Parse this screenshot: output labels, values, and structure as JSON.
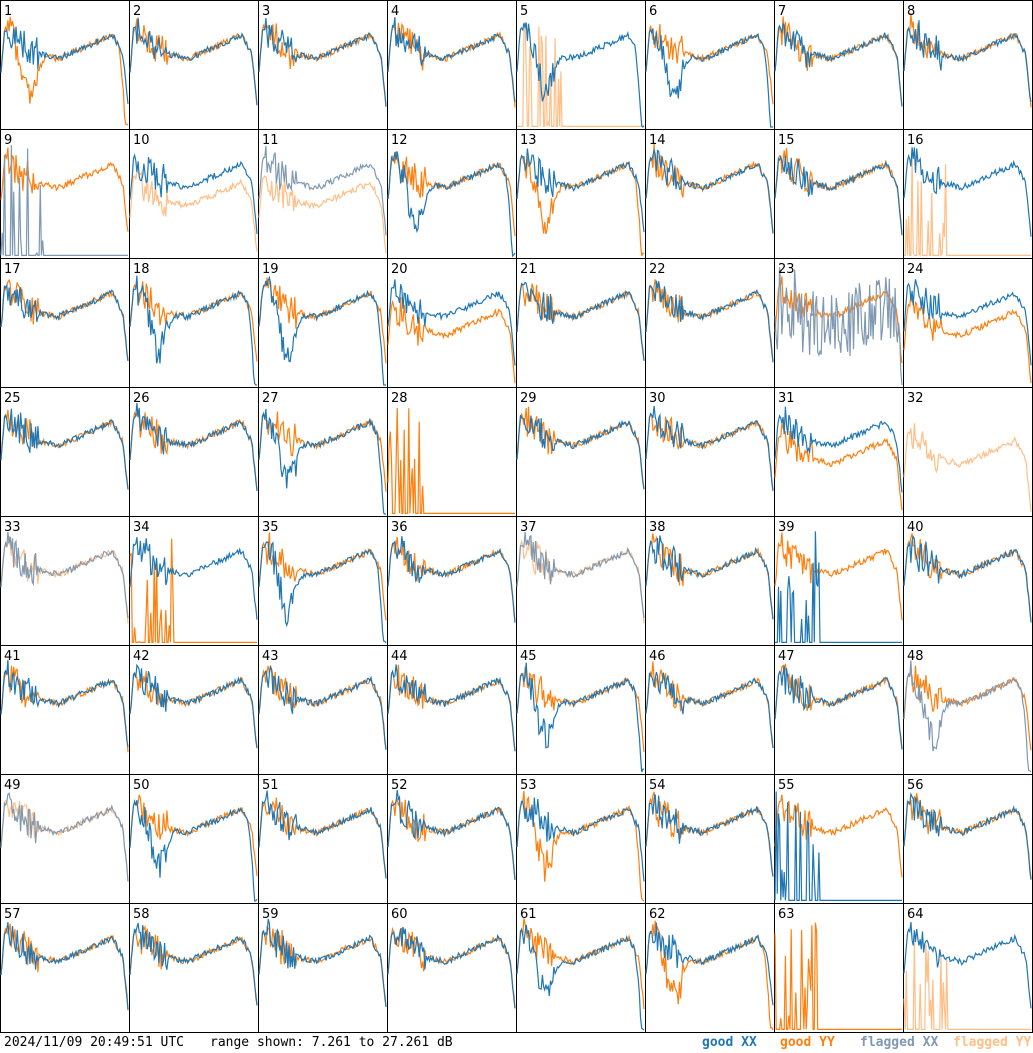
{
  "footer": {
    "timestamp": "2024/11/09 20:49:51 UTC",
    "range": "range shown: 7.261 to 27.261 dB"
  },
  "legend": {
    "good_xx": "good XX",
    "good_yy": "good YY",
    "flagged_xx": "flagged XX",
    "flagged_yy": "flagged YY",
    "colors": {
      "good_xx": "#1f77b4",
      "good_yy": "#ff7f0e",
      "flagged_xx": "#7f99b3",
      "flagged_yy": "#ffbf87"
    }
  },
  "chart_data": {
    "type": "line",
    "layout": "8x8 small multiples",
    "range_db": [
      7.261,
      27.261
    ],
    "panels": [
      {
        "id": "1",
        "xx": "good",
        "yy": "good",
        "xx_shape": "normal",
        "yy_shape": "dip_mid"
      },
      {
        "id": "2",
        "xx": "good",
        "yy": "good",
        "xx_shape": "normal",
        "yy_shape": "normal"
      },
      {
        "id": "3",
        "xx": "good",
        "yy": "good",
        "xx_shape": "normal",
        "yy_shape": "normal"
      },
      {
        "id": "4",
        "xx": "good",
        "yy": "good",
        "xx_shape": "normal",
        "yy_shape": "normal"
      },
      {
        "id": "5",
        "xx": "good",
        "yy": "flagged",
        "xx_shape": "dip_mid",
        "yy_shape": "low_spikes"
      },
      {
        "id": "6",
        "xx": "good",
        "yy": "good",
        "xx_shape": "dip_mid",
        "yy_shape": "normal"
      },
      {
        "id": "7",
        "xx": "good",
        "yy": "good",
        "xx_shape": "normal",
        "yy_shape": "normal"
      },
      {
        "id": "8",
        "xx": "good",
        "yy": "good",
        "xx_shape": "normal",
        "yy_shape": "normal"
      },
      {
        "id": "9",
        "xx": "flagged",
        "yy": "good",
        "xx_shape": "low_spikes",
        "yy_shape": "normal"
      },
      {
        "id": "10",
        "xx": "good",
        "yy": "flagged",
        "xx_shape": "normal",
        "yy_shape": "lower"
      },
      {
        "id": "11",
        "xx": "flagged",
        "yy": "flagged",
        "xx_shape": "normal",
        "yy_shape": "lower"
      },
      {
        "id": "12",
        "xx": "good",
        "yy": "good",
        "xx_shape": "dip_mid",
        "yy_shape": "normal"
      },
      {
        "id": "13",
        "xx": "good",
        "yy": "good",
        "xx_shape": "normal",
        "yy_shape": "dip_mid"
      },
      {
        "id": "14",
        "xx": "good",
        "yy": "good",
        "xx_shape": "normal",
        "yy_shape": "normal"
      },
      {
        "id": "15",
        "xx": "good",
        "yy": "good",
        "xx_shape": "normal",
        "yy_shape": "normal"
      },
      {
        "id": "16",
        "xx": "good",
        "yy": "flagged",
        "xx_shape": "normal",
        "yy_shape": "low_spikes"
      },
      {
        "id": "17",
        "xx": "good",
        "yy": "good",
        "xx_shape": "normal",
        "yy_shape": "normal"
      },
      {
        "id": "18",
        "xx": "good",
        "yy": "good",
        "xx_shape": "dip_mid",
        "yy_shape": "normal"
      },
      {
        "id": "19",
        "xx": "good",
        "yy": "good",
        "xx_shape": "dip_mid",
        "yy_shape": "normal"
      },
      {
        "id": "20",
        "xx": "good",
        "yy": "good",
        "xx_shape": "normal",
        "yy_shape": "lower"
      },
      {
        "id": "21",
        "xx": "good",
        "yy": "good",
        "xx_shape": "normal",
        "yy_shape": "normal"
      },
      {
        "id": "22",
        "xx": "good",
        "yy": "good",
        "xx_shape": "normal",
        "yy_shape": "normal"
      },
      {
        "id": "23",
        "xx": "flagged",
        "yy": "good",
        "xx_shape": "noisy",
        "yy_shape": "normal"
      },
      {
        "id": "24",
        "xx": "good",
        "yy": "good",
        "xx_shape": "normal",
        "yy_shape": "lower"
      },
      {
        "id": "25",
        "xx": "good",
        "yy": "good",
        "xx_shape": "normal",
        "yy_shape": "normal"
      },
      {
        "id": "26",
        "xx": "good",
        "yy": "good",
        "xx_shape": "normal",
        "yy_shape": "normal"
      },
      {
        "id": "27",
        "xx": "good",
        "yy": "good",
        "xx_shape": "dip_mid",
        "yy_shape": "normal"
      },
      {
        "id": "28",
        "xx": "none",
        "yy": "good",
        "xx_shape": "none",
        "yy_shape": "low_spikes"
      },
      {
        "id": "29",
        "xx": "good",
        "yy": "good",
        "xx_shape": "normal",
        "yy_shape": "normal"
      },
      {
        "id": "30",
        "xx": "good",
        "yy": "good",
        "xx_shape": "normal",
        "yy_shape": "normal"
      },
      {
        "id": "31",
        "xx": "good",
        "yy": "good",
        "xx_shape": "normal",
        "yy_shape": "lower"
      },
      {
        "id": "32",
        "xx": "none",
        "yy": "flagged",
        "xx_shape": "none",
        "yy_shape": "lower"
      },
      {
        "id": "33",
        "xx": "flagged",
        "yy": "flagged",
        "xx_shape": "normal",
        "yy_shape": "normal"
      },
      {
        "id": "34",
        "xx": "good",
        "yy": "good",
        "xx_shape": "normal",
        "yy_shape": "low_spikes"
      },
      {
        "id": "35",
        "xx": "good",
        "yy": "good",
        "xx_shape": "dip_mid",
        "yy_shape": "normal"
      },
      {
        "id": "36",
        "xx": "good",
        "yy": "good",
        "xx_shape": "normal",
        "yy_shape": "normal"
      },
      {
        "id": "37",
        "xx": "flagged",
        "yy": "flagged",
        "xx_shape": "normal",
        "yy_shape": "normal"
      },
      {
        "id": "38",
        "xx": "good",
        "yy": "good",
        "xx_shape": "normal",
        "yy_shape": "normal"
      },
      {
        "id": "39",
        "xx": "good",
        "yy": "good",
        "xx_shape": "low_spikes",
        "yy_shape": "normal"
      },
      {
        "id": "40",
        "xx": "good",
        "yy": "good",
        "xx_shape": "normal",
        "yy_shape": "normal"
      },
      {
        "id": "41",
        "xx": "good",
        "yy": "good",
        "xx_shape": "normal",
        "yy_shape": "normal"
      },
      {
        "id": "42",
        "xx": "good",
        "yy": "good",
        "xx_shape": "normal",
        "yy_shape": "normal"
      },
      {
        "id": "43",
        "xx": "good",
        "yy": "good",
        "xx_shape": "normal",
        "yy_shape": "normal"
      },
      {
        "id": "44",
        "xx": "good",
        "yy": "good",
        "xx_shape": "normal",
        "yy_shape": "normal"
      },
      {
        "id": "45",
        "xx": "good",
        "yy": "good",
        "xx_shape": "dip_mid",
        "yy_shape": "normal"
      },
      {
        "id": "46",
        "xx": "good",
        "yy": "good",
        "xx_shape": "normal",
        "yy_shape": "normal"
      },
      {
        "id": "47",
        "xx": "good",
        "yy": "good",
        "xx_shape": "normal",
        "yy_shape": "normal"
      },
      {
        "id": "48",
        "xx": "flagged",
        "yy": "good",
        "xx_shape": "dip_mid",
        "yy_shape": "normal"
      },
      {
        "id": "49",
        "xx": "flagged",
        "yy": "flagged",
        "xx_shape": "normal",
        "yy_shape": "normal"
      },
      {
        "id": "50",
        "xx": "good",
        "yy": "good",
        "xx_shape": "dip_mid",
        "yy_shape": "normal"
      },
      {
        "id": "51",
        "xx": "good",
        "yy": "good",
        "xx_shape": "normal",
        "yy_shape": "normal"
      },
      {
        "id": "52",
        "xx": "good",
        "yy": "good",
        "xx_shape": "normal",
        "yy_shape": "normal"
      },
      {
        "id": "53",
        "xx": "good",
        "yy": "good",
        "xx_shape": "normal",
        "yy_shape": "dip_mid"
      },
      {
        "id": "54",
        "xx": "good",
        "yy": "good",
        "xx_shape": "normal",
        "yy_shape": "normal"
      },
      {
        "id": "55",
        "xx": "good",
        "yy": "good",
        "xx_shape": "low_spikes",
        "yy_shape": "normal"
      },
      {
        "id": "56",
        "xx": "good",
        "yy": "good",
        "xx_shape": "normal",
        "yy_shape": "normal"
      },
      {
        "id": "57",
        "xx": "good",
        "yy": "good",
        "xx_shape": "normal",
        "yy_shape": "normal"
      },
      {
        "id": "58",
        "xx": "good",
        "yy": "good",
        "xx_shape": "normal",
        "yy_shape": "normal"
      },
      {
        "id": "59",
        "xx": "good",
        "yy": "good",
        "xx_shape": "normal",
        "yy_shape": "normal"
      },
      {
        "id": "60",
        "xx": "good",
        "yy": "good",
        "xx_shape": "normal",
        "yy_shape": "normal"
      },
      {
        "id": "61",
        "xx": "good",
        "yy": "good",
        "xx_shape": "dip_mid",
        "yy_shape": "normal"
      },
      {
        "id": "62",
        "xx": "good",
        "yy": "good",
        "xx_shape": "normal",
        "yy_shape": "dip_mid"
      },
      {
        "id": "63",
        "xx": "none",
        "yy": "good",
        "xx_shape": "none",
        "yy_shape": "low_spikes"
      },
      {
        "id": "64",
        "xx": "good",
        "yy": "flagged",
        "xx_shape": "normal",
        "yy_shape": "low_spikes"
      }
    ]
  }
}
